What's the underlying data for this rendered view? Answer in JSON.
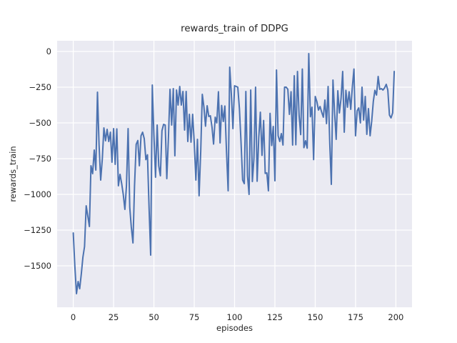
{
  "figure": {
    "title": "rewards_train of DDPG",
    "xlabel": "episodes",
    "ylabel": "rewards_train"
  },
  "colors": {
    "line": "#4c72b0",
    "plot_background": "#eaeaf2",
    "grid": "#ffffff",
    "text": "#262626",
    "figure_background": "#ffffff"
  },
  "chart_data": {
    "type": "line",
    "title": "rewards_train of DDPG",
    "xlabel": "episodes",
    "ylabel": "rewards_train",
    "style": "seaborn-darkgrid",
    "grid": true,
    "legend": false,
    "xlim": [
      -10,
      210
    ],
    "ylim": [
      -1790,
      75
    ],
    "x_ticks": [
      {
        "v": 0,
        "label": "0"
      },
      {
        "v": 25,
        "label": "25"
      },
      {
        "v": 50,
        "label": "50"
      },
      {
        "v": 75,
        "label": "75"
      },
      {
        "v": 100,
        "label": "100"
      },
      {
        "v": 125,
        "label": "125"
      },
      {
        "v": 150,
        "label": "150"
      },
      {
        "v": 175,
        "label": "175"
      },
      {
        "v": 200,
        "label": "200"
      }
    ],
    "y_ticks": [
      {
        "v": 0,
        "label": "0"
      },
      {
        "v": -250,
        "label": "−250"
      },
      {
        "v": -500,
        "label": "−500"
      },
      {
        "v": -750,
        "label": "−750"
      },
      {
        "v": -1000,
        "label": "−1000"
      },
      {
        "v": -1250,
        "label": "−1250"
      },
      {
        "v": -1500,
        "label": "−1500"
      }
    ],
    "series": [
      {
        "name": "rewards_train",
        "color": "#4c72b0",
        "x_start": 0,
        "x_step": 1,
        "values": [
          -1270,
          -1500,
          -1695,
          -1610,
          -1660,
          -1555,
          -1440,
          -1365,
          -1080,
          -1150,
          -1225,
          -800,
          -855,
          -690,
          -830,
          -285,
          -650,
          -900,
          -750,
          -535,
          -625,
          -545,
          -630,
          -565,
          -775,
          -540,
          -790,
          -542,
          -940,
          -860,
          -925,
          -1000,
          -1105,
          -940,
          -540,
          -1090,
          -1230,
          -1340,
          -940,
          -650,
          -623,
          -800,
          -590,
          -565,
          -610,
          -757,
          -723,
          -1100,
          -1425,
          -235,
          -580,
          -880,
          -515,
          -800,
          -870,
          -555,
          -510,
          -515,
          -890,
          -600,
          -265,
          -515,
          -260,
          -730,
          -270,
          -375,
          -245,
          -375,
          -280,
          -550,
          -280,
          -630,
          -440,
          -635,
          -440,
          -635,
          -900,
          -615,
          -1010,
          -700,
          -300,
          -390,
          -523,
          -380,
          -455,
          -450,
          -530,
          -648,
          -460,
          -500,
          -282,
          -640,
          -378,
          -490,
          -382,
          -700,
          -975,
          -110,
          -300,
          -540,
          -240,
          -245,
          -250,
          -400,
          -630,
          -900,
          -925,
          -280,
          -870,
          -1000,
          -270,
          -910,
          -750,
          -250,
          -908,
          -600,
          -425,
          -727,
          -483,
          -853,
          -850,
          -975,
          -433,
          -658,
          -525,
          -905,
          -130,
          -590,
          -630,
          -575,
          -655,
          -250,
          -250,
          -265,
          -440,
          -282,
          -655,
          -170,
          -653,
          -140,
          -450,
          -582,
          -123,
          -673,
          -625,
          -677,
          -15,
          -457,
          -390,
          -757,
          -315,
          -350,
          -410,
          -385,
          -425,
          -460,
          -340,
          -505,
          -245,
          -640,
          -930,
          -200,
          -430,
          -615,
          -275,
          -430,
          -330,
          -140,
          -565,
          -272,
          -390,
          -282,
          -405,
          -250,
          -123,
          -590,
          -415,
          -395,
          -500,
          -250,
          -480,
          -315,
          -580,
          -400,
          -590,
          -490,
          -350,
          -272,
          -305,
          -175,
          -265,
          -260,
          -270,
          -255,
          -230,
          -270,
          -445,
          -465,
          -430,
          -140
        ]
      }
    ]
  }
}
